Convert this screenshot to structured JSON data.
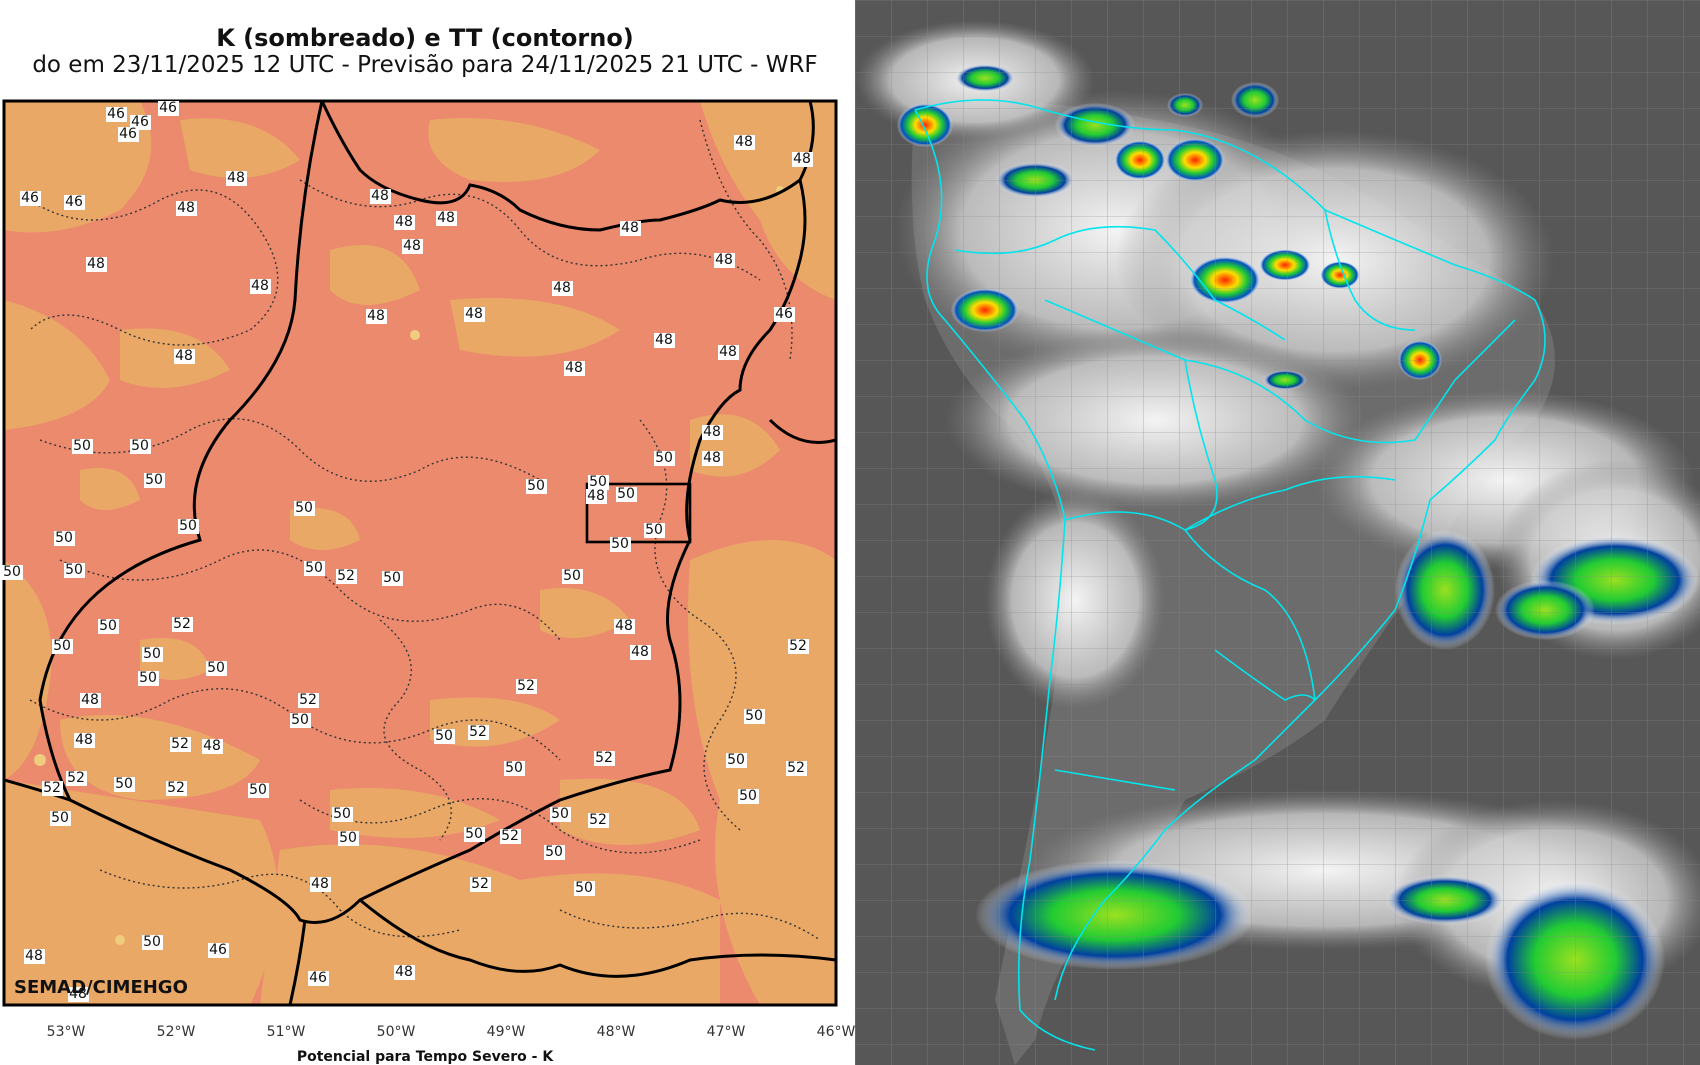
{
  "left_map": {
    "title": "K (sombreado) e TT (contorno)",
    "subtitle": "do em 23/11/2025 12 UTC - Previsão para 24/11/2025 21 UTC - WRF",
    "watermark": "SEMAD/CIMEHGO",
    "x_axis_title": "Potencial para Tempo Severo - K",
    "x_ticks": [
      "53°W",
      "52°W",
      "51°W",
      "50°W",
      "49°W",
      "48°W",
      "47°W",
      "46°W"
    ],
    "colors": {
      "high": "#EC8A6E",
      "mid": "#E9A866",
      "low": "#F0CC7E",
      "border": "#000000"
    },
    "contour_labels": [
      "46",
      "46",
      "46",
      "46",
      "46",
      "46",
      "48",
      "48",
      "48",
      "48",
      "48",
      "48",
      "48",
      "48",
      "48",
      "48",
      "48",
      "48",
      "48",
      "48",
      "48",
      "48",
      "46",
      "48",
      "48",
      "48",
      "48",
      "48",
      "50",
      "50",
      "50",
      "50",
      "50",
      "50",
      "50",
      "48",
      "50",
      "50",
      "50",
      "50",
      "50",
      "50",
      "50",
      "50",
      "50",
      "52",
      "50",
      "50",
      "48",
      "48",
      "50",
      "52",
      "50",
      "50",
      "50",
      "52",
      "52",
      "50",
      "52",
      "48",
      "48",
      "48",
      "52",
      "52",
      "50",
      "52",
      "50",
      "50",
      "52",
      "50",
      "50",
      "52",
      "50",
      "50",
      "52",
      "52",
      "50",
      "50",
      "50",
      "52",
      "50",
      "52",
      "50",
      "50",
      "48",
      "52",
      "50",
      "50",
      "46",
      "48",
      "48",
      "46",
      "48"
    ]
  },
  "right_map": {
    "description_colors": {
      "cloud_cold": "#ffffff",
      "ocean": "#595959",
      "borders": "#00E5EE",
      "deep_convection": [
        "#00a0ff",
        "#22cc33",
        "#ffee00",
        "#ff3300"
      ]
    }
  }
}
